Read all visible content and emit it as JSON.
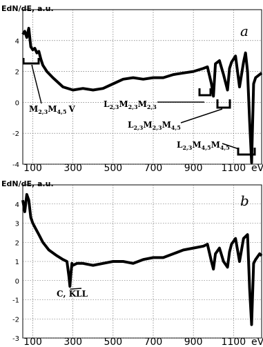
{
  "chart_data": [
    {
      "type": "line",
      "panel": "a",
      "ylabel": "EdN/dE, a.u.",
      "xlabel": "eV",
      "ylim": [
        -4,
        6
      ],
      "xlim": [
        50,
        1240
      ],
      "x_ticks": [
        "100",
        "300",
        "500",
        "700",
        "900",
        "1100"
      ],
      "y_ticks": [
        "-4",
        "-2",
        "0",
        "2",
        "4"
      ],
      "grid": true,
      "series": [
        {
          "x": [
            50,
            60,
            70,
            80,
            90,
            100,
            110,
            120,
            130,
            140,
            150,
            170,
            200,
            250,
            300,
            350,
            400,
            450,
            500,
            550,
            600,
            650,
            700,
            750,
            800,
            850,
            900,
            950,
            970,
            990,
            1000,
            1010,
            1030,
            1050,
            1070,
            1080,
            1090,
            1110,
            1130,
            1150,
            1160,
            1170,
            1180,
            1190,
            1200,
            1210,
            1230,
            1240
          ],
          "y": [
            4.4,
            4.6,
            4.2,
            4.8,
            3.6,
            3.4,
            3.5,
            3.2,
            3.3,
            2.8,
            2.4,
            2.0,
            1.6,
            1.0,
            0.8,
            0.9,
            0.8,
            0.9,
            1.2,
            1.5,
            1.6,
            1.5,
            1.6,
            1.6,
            1.8,
            1.9,
            2.0,
            2.2,
            2.3,
            1.2,
            0.4,
            2.5,
            2.7,
            1.8,
            0.8,
            2.2,
            2.6,
            3.0,
            1.0,
            2.6,
            3.2,
            2.0,
            -1.2,
            -3.9,
            1.2,
            1.6,
            1.8,
            1.9
          ]
        }
      ],
      "annotations": [
        {
          "text": "M",
          "sub1": "2,3",
          "mid": "M",
          "sub2": "4,5",
          "tail": "V"
        },
        {
          "text": "L",
          "sub1": "2,3",
          "mid": "M",
          "sub2": "2,3",
          "mid2": "M",
          "sub3": "2,3"
        },
        {
          "text": "L",
          "sub1": "2,3",
          "mid": "M",
          "sub2": "2,3",
          "mid2": "M",
          "sub3": "4,5"
        },
        {
          "text": "L",
          "sub1": "2,3",
          "mid": "M",
          "sub2": "4,5",
          "mid2": "M",
          "sub3": "4,5"
        }
      ]
    },
    {
      "type": "line",
      "panel": "b",
      "ylabel": "EdN/dE, a.u.",
      "xlabel": "eV",
      "ylim": [
        -3,
        5
      ],
      "xlim": [
        50,
        1240
      ],
      "x_ticks": [
        "100",
        "300",
        "500",
        "700",
        "900",
        "1100"
      ],
      "y_ticks": [
        "-3",
        "-2",
        "-1",
        "0",
        "1",
        "2",
        "3",
        "4"
      ],
      "grid": true,
      "series": [
        {
          "x": [
            50,
            60,
            70,
            80,
            90,
            100,
            110,
            130,
            150,
            180,
            220,
            250,
            270,
            280,
            285,
            290,
            295,
            300,
            320,
            350,
            400,
            450,
            500,
            550,
            600,
            650,
            700,
            750,
            800,
            850,
            900,
            950,
            970,
            990,
            1000,
            1010,
            1030,
            1050,
            1070,
            1080,
            1090,
            1110,
            1130,
            1150,
            1170,
            1180,
            1190,
            1200,
            1210,
            1230,
            1240
          ],
          "y": [
            4.2,
            3.6,
            4.5,
            4.2,
            3.3,
            3.0,
            2.8,
            2.4,
            2.0,
            1.6,
            1.3,
            1.1,
            1.0,
            0.2,
            -0.3,
            0.4,
            0.9,
            0.8,
            0.9,
            0.9,
            0.8,
            0.9,
            1.0,
            1.0,
            0.9,
            1.1,
            1.2,
            1.2,
            1.4,
            1.6,
            1.7,
            1.8,
            1.9,
            1.0,
            0.6,
            1.4,
            1.7,
            1.0,
            0.7,
            1.5,
            1.9,
            2.2,
            1.0,
            2.2,
            2.4,
            -0.4,
            -2.3,
            0.9,
            1.1,
            1.4,
            1.3
          ]
        }
      ],
      "annotations": [
        {
          "text": "C, KLL"
        }
      ]
    }
  ]
}
